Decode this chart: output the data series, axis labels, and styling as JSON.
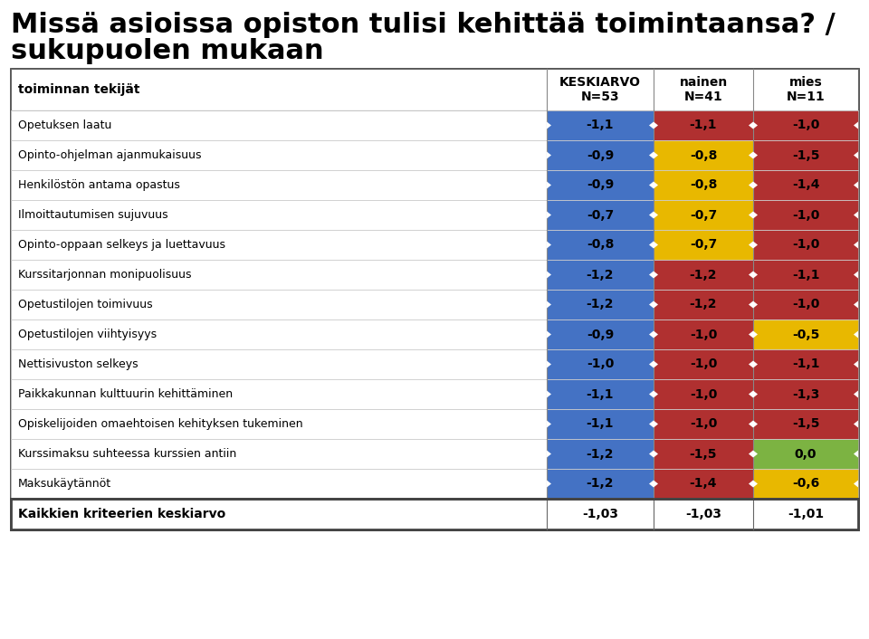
{
  "title_line1": "Missä asioissa opiston tulisi kehittää toimintaansa? /",
  "title_line2": "sukupuolen mukaan",
  "col_headers": [
    "toiminnan tekijät",
    "KESKIARVO\nN=53",
    "nainen\nN=41",
    "mies\nN=11"
  ],
  "rows": [
    {
      "label": "Opetuksen laatu",
      "keskiarvo": "-1,1",
      "nainen": "-1,1",
      "mies": "-1,0"
    },
    {
      "label": "Opinto-ohjelman ajanmukaisuus",
      "keskiarvo": "-0,9",
      "nainen": "-0,8",
      "mies": "-1,5"
    },
    {
      "label": "Henkilöstön antama opastus",
      "keskiarvo": "-0,9",
      "nainen": "-0,8",
      "mies": "-1,4"
    },
    {
      "label": "Ilmoittautumisen sujuvuus",
      "keskiarvo": "-0,7",
      "nainen": "-0,7",
      "mies": "-1,0"
    },
    {
      "label": "Opinto-oppaan selkeys ja luettavuus",
      "keskiarvo": "-0,8",
      "nainen": "-0,7",
      "mies": "-1,0"
    },
    {
      "label": "Kurssitarjonnan monipuolisuus",
      "keskiarvo": "-1,2",
      "nainen": "-1,2",
      "mies": "-1,1"
    },
    {
      "label": "Opetustilojen toimivuus",
      "keskiarvo": "-1,2",
      "nainen": "-1,2",
      "mies": "-1,0"
    },
    {
      "label": "Opetustilojen viihtyisyys",
      "keskiarvo": "-0,9",
      "nainen": "-1,0",
      "mies": "-0,5"
    },
    {
      "label": "Nettisivuston selkeys",
      "keskiarvo": "-1,0",
      "nainen": "-1,0",
      "mies": "-1,1"
    },
    {
      "label": "Paikkakunnan kulttuurin kehittäminen",
      "keskiarvo": "-1,1",
      "nainen": "-1,0",
      "mies": "-1,3"
    },
    {
      "label": "Opiskelijoiden omaehtoisen kehityksen tukeminen",
      "keskiarvo": "-1,1",
      "nainen": "-1,0",
      "mies": "-1,5"
    },
    {
      "label": "Kurssimaksu suhteessa kurssien antiin",
      "keskiarvo": "-1,2",
      "nainen": "-1,5",
      "mies": "0,0"
    },
    {
      "label": "Maksukäytännöt",
      "keskiarvo": "-1,2",
      "nainen": "-1,4",
      "mies": "-0,6"
    }
  ],
  "footer_label": "Kaikkien kriteerien keskiarvo",
  "footer_values": [
    "-1,03",
    "-1,03",
    "-1,01"
  ],
  "color_blue": "#4472C4",
  "color_red": "#B03030",
  "color_yellow": "#E8B800",
  "color_green": "#7CB342",
  "color_white": "#FFFFFF",
  "bg_color": "#FFFFFF",
  "cell_colors": {
    "keskiarvo": [
      "blue",
      "blue",
      "blue",
      "blue",
      "blue",
      "blue",
      "blue",
      "blue",
      "blue",
      "blue",
      "blue",
      "blue",
      "blue"
    ],
    "nainen": [
      "red",
      "yellow",
      "yellow",
      "yellow",
      "yellow",
      "red",
      "red",
      "red",
      "red",
      "red",
      "red",
      "red",
      "red"
    ],
    "mies": [
      "red",
      "red",
      "red",
      "red",
      "red",
      "red",
      "red",
      "yellow",
      "red",
      "red",
      "red",
      "green",
      "yellow"
    ]
  },
  "title_fontsize": 22,
  "header_fontsize": 10,
  "label_fontsize": 9,
  "value_fontsize": 10,
  "footer_fontsize": 10
}
